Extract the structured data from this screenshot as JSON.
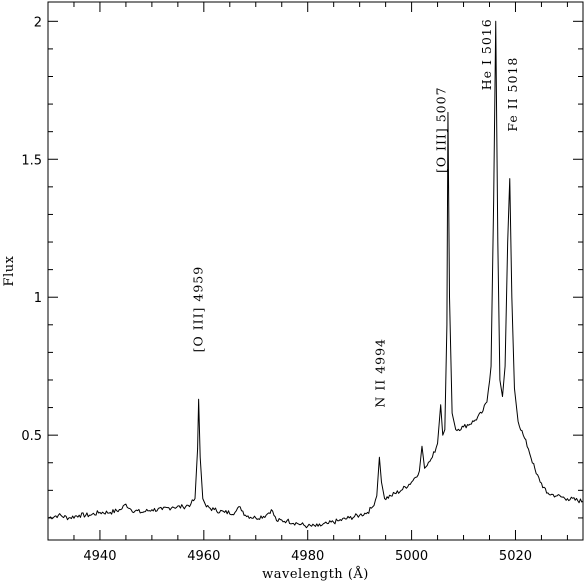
{
  "chart_data": {
    "type": "line",
    "title": "",
    "xlabel": "wavelength (Å)",
    "ylabel": "Flux",
    "xlim": [
      4930,
      5033
    ],
    "ylim": [
      0.12,
      2.07
    ],
    "x_ticks": [
      4940,
      4960,
      4980,
      5000,
      5020
    ],
    "y_ticks": [
      0.5,
      1,
      1.5,
      2
    ],
    "x_tick_labels": [
      "4940",
      "4960",
      "4980",
      "5000",
      "5020"
    ],
    "y_tick_labels": [
      "0.5",
      "1",
      "1.5",
      "2"
    ],
    "grid": false,
    "series": [
      {
        "x": [
          4930,
          4932,
          4934,
          4936,
          4938,
          4940,
          4942,
          4944,
          4945,
          4946,
          4948,
          4950,
          4952,
          4954,
          4956,
          4957.5,
          4958.3,
          4958.8,
          4959.0,
          4959.3,
          4959.8,
          4960.5,
          4962,
          4964,
          4966,
          4967,
          4968,
          4970,
          4972,
          4973,
          4974,
          4976,
          4978,
          4980,
          4982,
          4984,
          4986,
          4988,
          4990,
          4991.5,
          4992.5,
          4993.3,
          4993.8,
          4994.2,
          4994.8,
          4996,
          4998,
          5000,
          5001.5,
          5002.0,
          5002.5,
          5003,
          5004,
          5005,
          5005.6,
          5006.0,
          5006.4,
          5006.8,
          5007.0,
          5007.3,
          5007.8,
          5008.5,
          5010,
          5012,
          5013.5,
          5014.5,
          5015.3,
          5015.8,
          5016.2,
          5016.6,
          5017.0,
          5017.5,
          5018.0,
          5018.5,
          5018.9,
          5019.3,
          5019.8,
          5020.5,
          5021.5,
          5022.5,
          5024,
          5026,
          5028,
          5030,
          5033
        ],
        "y": [
          0.2,
          0.21,
          0.2,
          0.21,
          0.21,
          0.22,
          0.22,
          0.23,
          0.25,
          0.23,
          0.22,
          0.23,
          0.23,
          0.24,
          0.24,
          0.25,
          0.27,
          0.45,
          0.63,
          0.42,
          0.27,
          0.24,
          0.23,
          0.22,
          0.22,
          0.24,
          0.21,
          0.2,
          0.21,
          0.23,
          0.19,
          0.19,
          0.18,
          0.17,
          0.17,
          0.18,
          0.19,
          0.2,
          0.21,
          0.22,
          0.24,
          0.28,
          0.42,
          0.33,
          0.27,
          0.28,
          0.3,
          0.33,
          0.37,
          0.46,
          0.38,
          0.39,
          0.42,
          0.47,
          0.61,
          0.5,
          0.52,
          0.9,
          1.67,
          1.0,
          0.58,
          0.52,
          0.53,
          0.55,
          0.58,
          0.62,
          0.75,
          1.35,
          2.0,
          1.2,
          0.7,
          0.64,
          0.75,
          1.2,
          1.43,
          1.0,
          0.67,
          0.55,
          0.5,
          0.45,
          0.36,
          0.29,
          0.28,
          0.27,
          0.26
        ]
      }
    ],
    "annotations": [
      {
        "text": "[O III] 4959",
        "x": 4959,
        "y": 0.8
      },
      {
        "text": "N II 4994",
        "x": 4994,
        "y": 0.6
      },
      {
        "text": "[O III] 5007",
        "x": 5005.8,
        "y": 1.45
      },
      {
        "text": "He I 5016",
        "x": 5014.5,
        "y": 1.75
      },
      {
        "text": "Fe II 5018",
        "x": 5019.5,
        "y": 1.6
      }
    ]
  }
}
